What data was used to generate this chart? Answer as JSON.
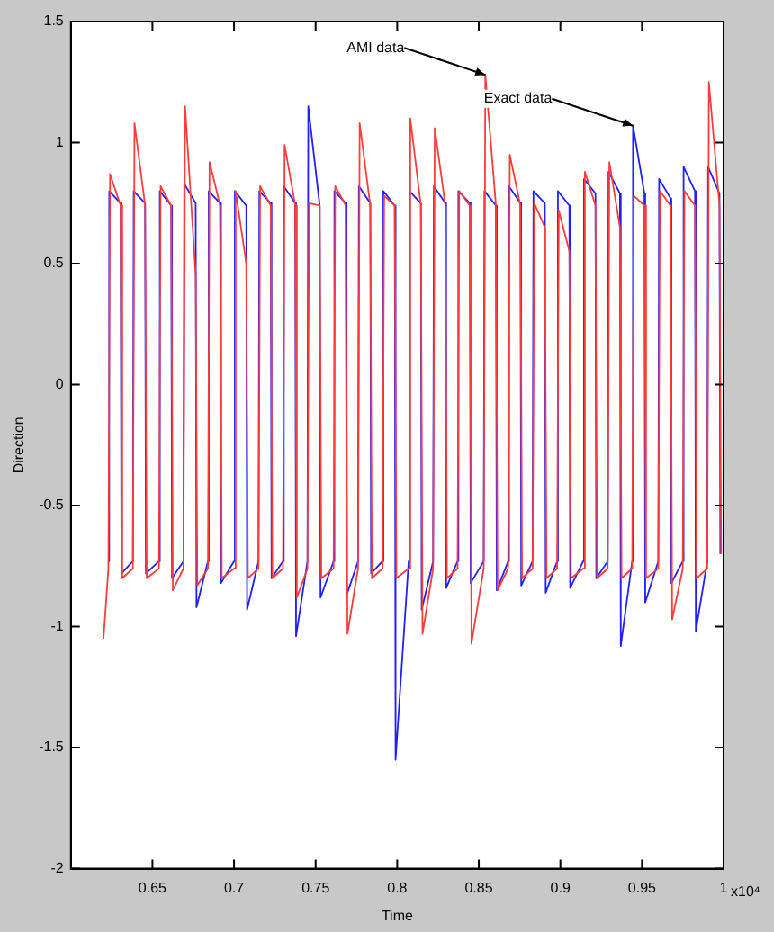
{
  "chart_data": {
    "type": "line",
    "xlabel": "Time",
    "ylabel": "Direction",
    "xlim": [
      0.6,
      1
    ],
    "xticks": [
      0.65,
      0.7,
      0.75,
      0.8,
      0.85,
      0.9,
      0.95,
      1
    ],
    "ylim": [
      -2,
      1.5
    ],
    "yticks": [
      -2,
      -1.5,
      -1,
      -0.5,
      0,
      0.5,
      1,
      1.5
    ],
    "series": [
      {
        "color": "#ff3b3b",
        "x": [
          0.62,
          0.623,
          0.624,
          0.6305,
          0.6315,
          0.638,
          0.639,
          0.6455,
          0.6465,
          0.654,
          0.655,
          0.6615,
          0.6625,
          0.669,
          0.67,
          0.6765,
          0.6775,
          0.684,
          0.685,
          0.6915,
          0.6925,
          0.7,
          0.701,
          0.7075,
          0.7085,
          0.715,
          0.716,
          0.7225,
          0.7235,
          0.73,
          0.731,
          0.7375,
          0.7385,
          0.745,
          0.746,
          0.7525,
          0.7535,
          0.761,
          0.762,
          0.7685,
          0.7695,
          0.776,
          0.777,
          0.7835,
          0.7845,
          0.791,
          0.792,
          0.7985,
          0.7995,
          0.807,
          0.808,
          0.8145,
          0.8155,
          0.822,
          0.823,
          0.8295,
          0.8305,
          0.837,
          0.838,
          0.8445,
          0.8455,
          0.853,
          0.854,
          0.8605,
          0.8615,
          0.868,
          0.869,
          0.8755,
          0.8765,
          0.883,
          0.884,
          0.8905,
          0.8915,
          0.898,
          0.899,
          0.9055,
          0.9065,
          0.914,
          0.915,
          0.9215,
          0.9225,
          0.929,
          0.93,
          0.9365,
          0.9375,
          0.944,
          0.945,
          0.9515,
          0.9525,
          0.96,
          0.961,
          0.9675,
          0.9685,
          0.975,
          0.976,
          0.9825,
          0.9835,
          0.99,
          0.991,
          0.9975,
          0.9985
        ],
        "values": [
          -1.05,
          -0.76,
          0.87,
          0.74,
          -0.8,
          -0.76,
          1.08,
          0.74,
          -0.8,
          -0.76,
          0.82,
          0.74,
          -0.85,
          -0.76,
          1.15,
          0.45,
          -0.83,
          -0.76,
          0.92,
          0.74,
          -0.8,
          -0.76,
          0.8,
          0.5,
          -0.8,
          -0.76,
          0.82,
          0.74,
          -0.8,
          -0.76,
          0.99,
          0.74,
          -0.88,
          -0.76,
          0.75,
          0.74,
          -0.8,
          -0.76,
          0.82,
          0.74,
          -1.03,
          -0.76,
          1.08,
          0.74,
          -0.8,
          -0.76,
          0.78,
          0.74,
          -0.8,
          -0.76,
          1.1,
          0.74,
          -1.03,
          -0.76,
          1.06,
          0.74,
          -0.8,
          -0.76,
          0.8,
          0.74,
          -1.07,
          -0.76,
          1.28,
          0.74,
          -0.85,
          -0.76,
          0.95,
          0.74,
          -0.8,
          -0.76,
          0.75,
          0.65,
          -0.8,
          -0.76,
          0.72,
          0.55,
          -0.8,
          -0.76,
          0.88,
          0.74,
          -0.8,
          -0.76,
          0.92,
          0.65,
          -0.8,
          -0.76,
          0.78,
          0.74,
          -0.8,
          -0.76,
          0.8,
          0.74,
          -0.97,
          -0.76,
          0.8,
          0.74,
          -0.8,
          -0.76,
          1.25,
          0.74,
          -0.7
        ]
      },
      {
        "color": "#2020ff",
        "x": [
          0.623,
          0.6235,
          0.6305,
          0.631,
          0.638,
          0.6385,
          0.6455,
          0.646,
          0.654,
          0.6545,
          0.6615,
          0.662,
          0.669,
          0.6695,
          0.6765,
          0.677,
          0.684,
          0.6845,
          0.6915,
          0.692,
          0.7,
          0.7005,
          0.7075,
          0.708,
          0.715,
          0.7155,
          0.7225,
          0.723,
          0.73,
          0.7305,
          0.7375,
          0.738,
          0.745,
          0.7455,
          0.7525,
          0.753,
          0.761,
          0.7615,
          0.7685,
          0.769,
          0.776,
          0.7765,
          0.7835,
          0.784,
          0.791,
          0.7915,
          0.7985,
          0.799,
          0.807,
          0.8075,
          0.8145,
          0.815,
          0.822,
          0.8225,
          0.8295,
          0.83,
          0.837,
          0.8375,
          0.8445,
          0.845,
          0.853,
          0.8535,
          0.8605,
          0.861,
          0.868,
          0.8685,
          0.8755,
          0.876,
          0.883,
          0.8835,
          0.8905,
          0.891,
          0.898,
          0.8985,
          0.9055,
          0.906,
          0.914,
          0.9145,
          0.9215,
          0.922,
          0.929,
          0.9295,
          0.9365,
          0.937,
          0.944,
          0.9445,
          0.9515,
          0.952,
          0.96,
          0.9605,
          0.9675,
          0.968,
          0.975,
          0.9755,
          0.9825,
          0.983,
          0.99,
          0.9905,
          0.9975,
          0.998
        ],
        "values": [
          -0.73,
          0.8,
          0.75,
          -0.78,
          -0.73,
          0.8,
          0.75,
          -0.78,
          -0.73,
          0.8,
          0.74,
          -0.8,
          -0.73,
          0.83,
          0.75,
          -0.92,
          -0.73,
          0.8,
          0.75,
          -0.82,
          -0.73,
          0.8,
          0.74,
          -0.93,
          -0.73,
          0.8,
          0.75,
          -0.8,
          -0.73,
          0.82,
          0.75,
          -1.04,
          -0.73,
          1.15,
          0.74,
          -0.88,
          -0.73,
          0.8,
          0.75,
          -0.87,
          -0.73,
          0.82,
          0.75,
          -0.78,
          -0.73,
          0.8,
          0.74,
          -1.55,
          -0.73,
          0.8,
          0.75,
          -0.93,
          -0.73,
          0.82,
          0.75,
          -0.84,
          -0.73,
          0.8,
          0.75,
          -0.82,
          -0.73,
          0.8,
          0.74,
          -0.85,
          -0.73,
          0.82,
          0.75,
          -0.83,
          -0.73,
          0.8,
          0.75,
          -0.86,
          -0.73,
          0.8,
          0.74,
          -0.84,
          -0.73,
          0.85,
          0.79,
          -0.8,
          -0.73,
          0.88,
          0.79,
          -1.08,
          -0.73,
          1.07,
          0.79,
          -0.9,
          -0.73,
          0.85,
          0.77,
          -0.82,
          -0.73,
          0.9,
          0.8,
          -1.02,
          -0.73,
          0.9,
          0.79,
          -0.7
        ]
      }
    ],
    "annotations": [
      {
        "text": "AMI data",
        "x": 0.854,
        "y": 1.28
      },
      {
        "text": "Exact data",
        "x": 0.9445,
        "y": 1.07
      },
      "x10⁴"
    ]
  }
}
